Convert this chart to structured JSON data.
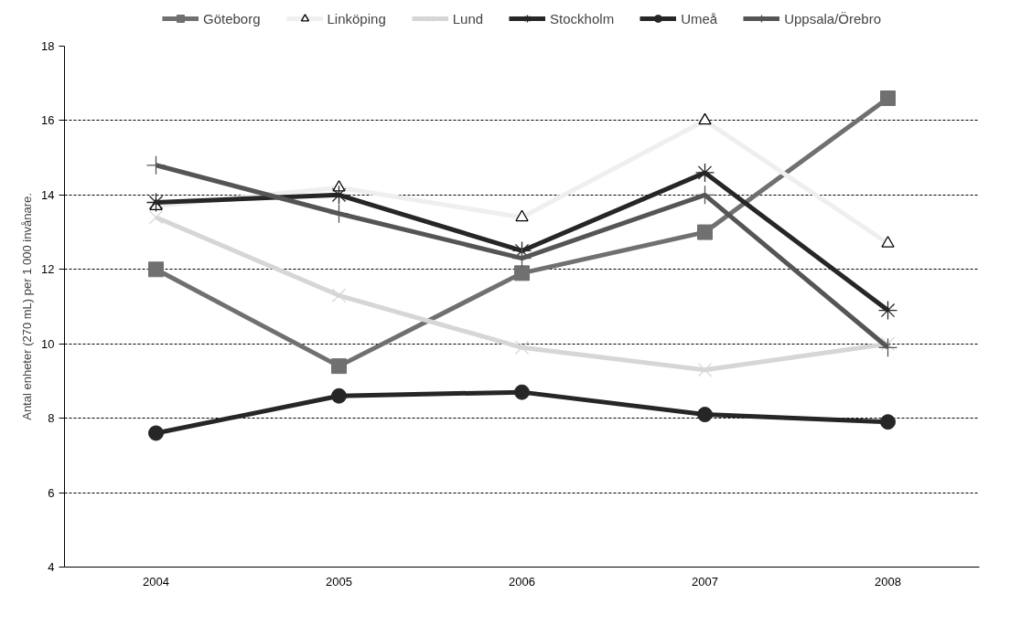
{
  "chart_data": {
    "type": "line",
    "ylabel": "Antal enheter (270 mL) per 1 000 invånare.",
    "categories": [
      "2004",
      "2005",
      "2006",
      "2007",
      "2008"
    ],
    "ylim": [
      4,
      18
    ],
    "yticks": [
      4,
      6,
      8,
      10,
      12,
      14,
      16,
      18
    ],
    "grid": "y",
    "legend": "top",
    "series": [
      {
        "name": "Göteborg",
        "color": "#707070",
        "marker": "square",
        "values": [
          12.0,
          9.4,
          11.9,
          13.0,
          16.6
        ]
      },
      {
        "name": "Linköping",
        "color": "#efefef",
        "marker": "triangle",
        "values": [
          13.7,
          14.2,
          13.4,
          16.0,
          12.7
        ]
      },
      {
        "name": "Lund",
        "color": "#d6d6d6",
        "marker": "x",
        "values": [
          13.4,
          11.3,
          9.9,
          9.3,
          10.0
        ]
      },
      {
        "name": "Stockholm",
        "color": "#262626",
        "marker": "cross",
        "values": [
          13.8,
          14.0,
          12.5,
          14.6,
          10.9
        ]
      },
      {
        "name": "Umeå",
        "color": "#262626",
        "marker": "circle",
        "values": [
          7.6,
          8.6,
          8.7,
          8.1,
          7.9
        ]
      },
      {
        "name": "Uppsala/Örebro",
        "color": "#555555",
        "marker": "plus",
        "values": [
          14.8,
          13.5,
          12.3,
          14.0,
          9.9
        ]
      }
    ]
  }
}
